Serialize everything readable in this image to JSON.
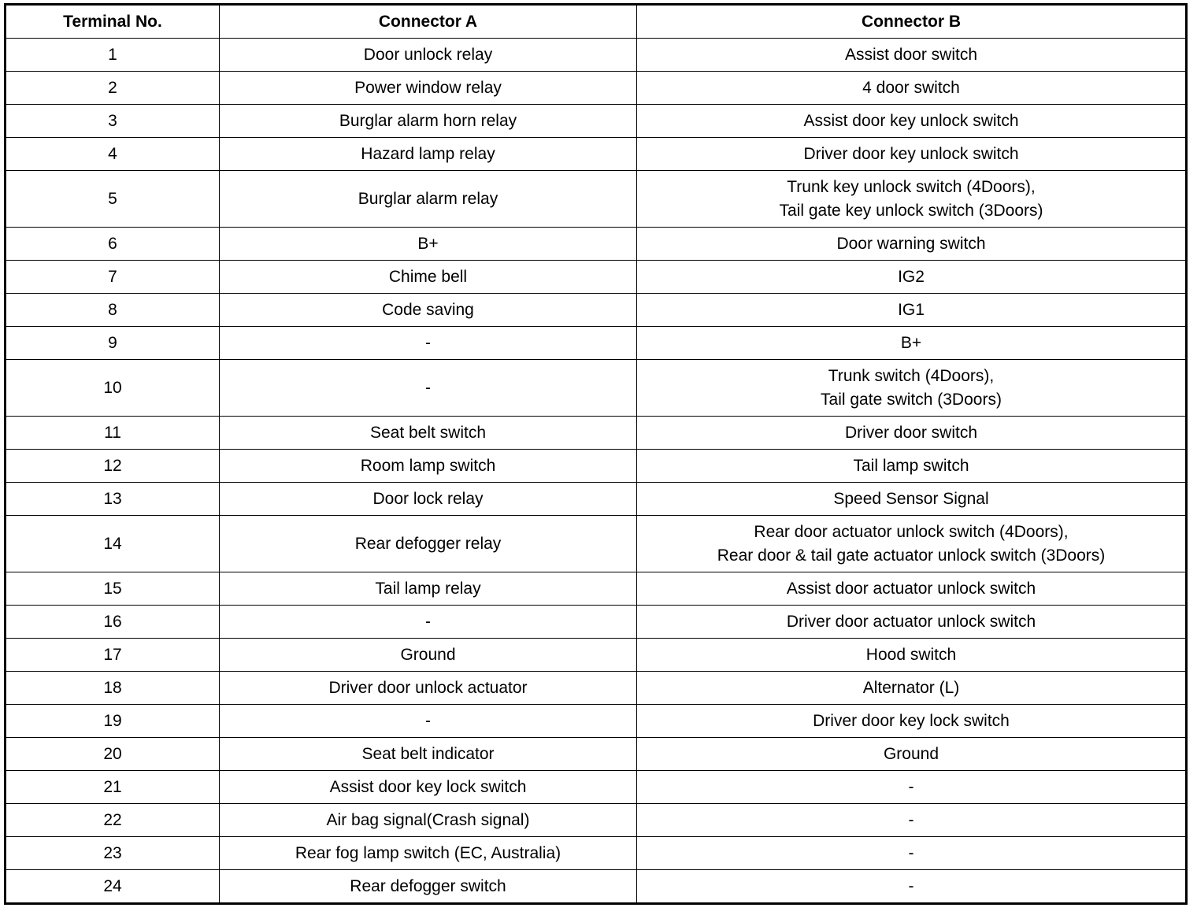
{
  "headers": [
    "Terminal No.",
    "Connector A",
    "Connector B"
  ],
  "rows": [
    {
      "no": "1",
      "a": "Door unlock relay",
      "b": [
        "Assist door switch"
      ]
    },
    {
      "no": "2",
      "a": "Power window relay",
      "b": [
        "4 door switch"
      ]
    },
    {
      "no": "3",
      "a": "Burglar alarm horn relay",
      "b": [
        "Assist door key unlock switch"
      ]
    },
    {
      "no": "4",
      "a": "Hazard lamp relay",
      "b": [
        "Driver door key unlock switch"
      ]
    },
    {
      "no": "5",
      "a": "Burglar alarm relay",
      "b": [
        "Trunk key unlock switch (4Doors),",
        "Tail gate key unlock switch (3Doors)"
      ]
    },
    {
      "no": "6",
      "a": "B+",
      "b": [
        "Door warning switch"
      ]
    },
    {
      "no": "7",
      "a": "Chime bell",
      "b": [
        "IG2"
      ]
    },
    {
      "no": "8",
      "a": "Code saving",
      "b": [
        "IG1"
      ]
    },
    {
      "no": "9",
      "a": "-",
      "b": [
        "B+"
      ]
    },
    {
      "no": "10",
      "a": "-",
      "b": [
        "Trunk switch (4Doors),",
        "Tail gate switch (3Doors)"
      ]
    },
    {
      "no": "11",
      "a": "Seat belt switch",
      "b": [
        "Driver door switch"
      ]
    },
    {
      "no": "12",
      "a": "Room lamp switch",
      "b": [
        "Tail lamp switch"
      ]
    },
    {
      "no": "13",
      "a": "Door lock relay",
      "b": [
        "Speed Sensor Signal"
      ]
    },
    {
      "no": "14",
      "a": "Rear defogger relay",
      "b": [
        "Rear door actuator unlock switch (4Doors),",
        "Rear door & tail gate actuator unlock switch (3Doors)"
      ]
    },
    {
      "no": "15",
      "a": "Tail lamp relay",
      "b": [
        "Assist door actuator unlock switch"
      ]
    },
    {
      "no": "16",
      "a": "-",
      "b": [
        "Driver door actuator unlock switch"
      ]
    },
    {
      "no": "17",
      "a": "Ground",
      "b": [
        "Hood switch"
      ]
    },
    {
      "no": "18",
      "a": "Driver door unlock actuator",
      "b": [
        "Alternator (L)"
      ]
    },
    {
      "no": "19",
      "a": "-",
      "b": [
        "Driver door key lock switch"
      ]
    },
    {
      "no": "20",
      "a": "Seat belt indicator",
      "b": [
        "Ground"
      ]
    },
    {
      "no": "21",
      "a": "Assist door key lock switch",
      "b": [
        "-"
      ]
    },
    {
      "no": "22",
      "a": "Air bag signal(Crash signal)",
      "b": [
        "-"
      ]
    },
    {
      "no": "23",
      "a": "Rear fog lamp switch (EC, Australia)",
      "b": [
        "-"
      ]
    },
    {
      "no": "24",
      "a": "Rear defogger switch",
      "b": [
        "-"
      ]
    }
  ]
}
